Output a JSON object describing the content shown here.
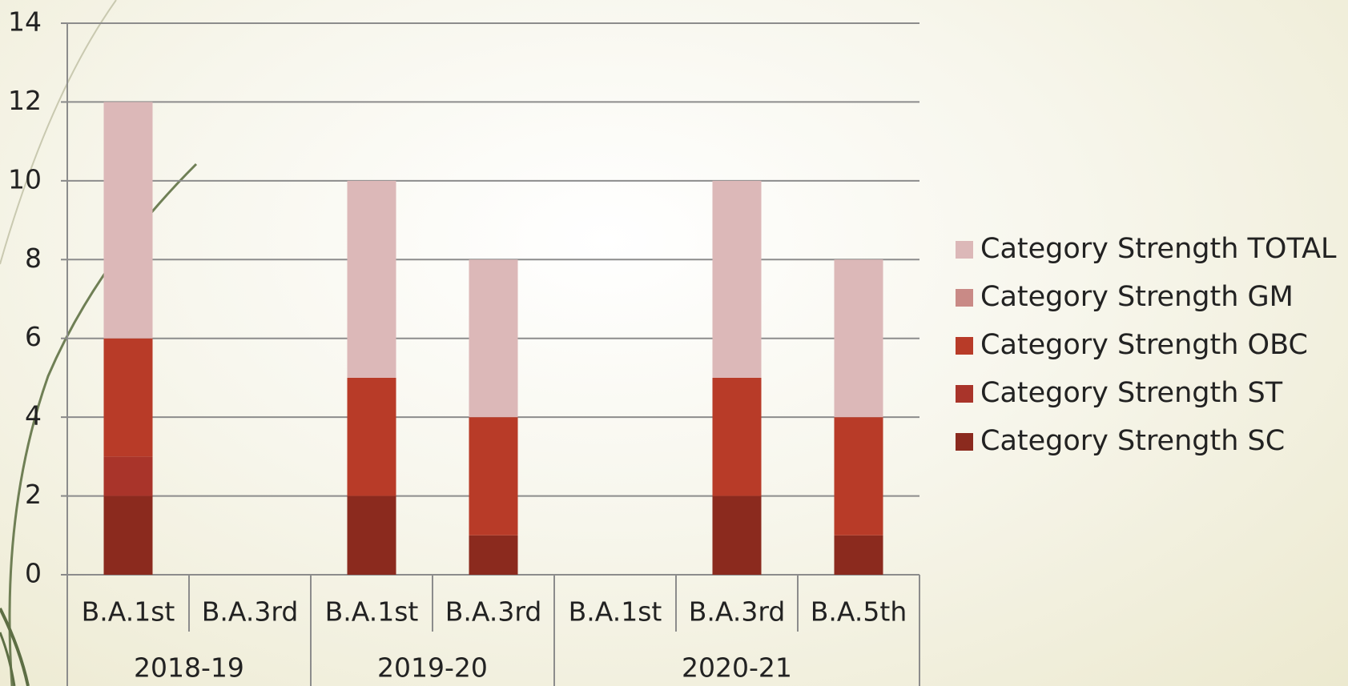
{
  "chart_data": {
    "type": "stacked-bar",
    "groups": [
      {
        "name": "2018-19",
        "categories": [
          "B.A.1st",
          "B.A.3rd"
        ]
      },
      {
        "name": "2019-20",
        "categories": [
          "B.A.1st",
          "B.A.3rd"
        ]
      },
      {
        "name": "2020-21",
        "categories": [
          "B.A.1st",
          "B.A.3rd",
          "B.A.5th"
        ]
      }
    ],
    "series": [
      {
        "name": "Category Strength SC",
        "color": "#8b2a1e",
        "values": [
          2,
          0,
          2,
          1,
          0,
          2,
          1
        ]
      },
      {
        "name": "Category Strength ST",
        "color": "#a9342a",
        "values": [
          1,
          0,
          0,
          0,
          0,
          0,
          0
        ]
      },
      {
        "name": "Category Strength OBC",
        "color": "#b83b28",
        "values": [
          3,
          0,
          3,
          3,
          0,
          3,
          3
        ]
      },
      {
        "name": "Category Strength GM",
        "color": "#c98a86",
        "values": [
          0,
          0,
          0,
          0,
          0,
          0,
          0
        ]
      },
      {
        "name": "Category Strength TOTAL",
        "color": "#dcb8b8",
        "values": [
          6,
          0,
          5,
          4,
          0,
          5,
          4
        ]
      }
    ],
    "ylim": [
      0,
      14
    ],
    "yticks": [
      0,
      2,
      4,
      6,
      8,
      10,
      12,
      14
    ],
    "grid": true,
    "legend": "right"
  }
}
